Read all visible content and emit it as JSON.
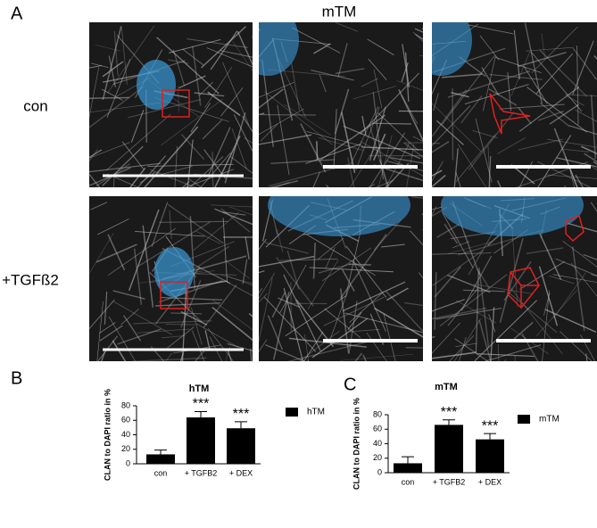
{
  "figure": {
    "panel_a": "A",
    "title": "mTM",
    "rows": [
      "con",
      "+TGFß2"
    ],
    "panel_b": "B",
    "panel_c": "C"
  },
  "chart_data": [
    {
      "type": "bar",
      "title": "hTM",
      "ylabel": "CLAN to DAPI ratio in %",
      "categories": [
        "con",
        "+ TGFB2",
        "+ DEX"
      ],
      "series": [
        {
          "name": "hTM",
          "color": "#000000",
          "values": [
            13,
            64,
            49
          ],
          "errors": [
            6,
            8,
            9
          ]
        }
      ],
      "annotations": [
        null,
        "***",
        "***"
      ],
      "ylim": [
        0,
        80
      ],
      "yticks": [
        0,
        20,
        40,
        60,
        80
      ],
      "legend": "right"
    },
    {
      "type": "bar",
      "title": "mTM",
      "ylabel": "CLAN to DAPI ratio in %",
      "categories": [
        "con",
        "+ TGFB2",
        "+ DEX"
      ],
      "series": [
        {
          "name": "mTM",
          "color": "#000000",
          "values": [
            13,
            66,
            46
          ],
          "errors": [
            9,
            7,
            8
          ]
        }
      ],
      "annotations": [
        null,
        "***",
        "***"
      ],
      "ylim": [
        0,
        80
      ],
      "yticks": [
        0,
        20,
        40,
        60,
        80
      ],
      "legend": "right"
    }
  ]
}
